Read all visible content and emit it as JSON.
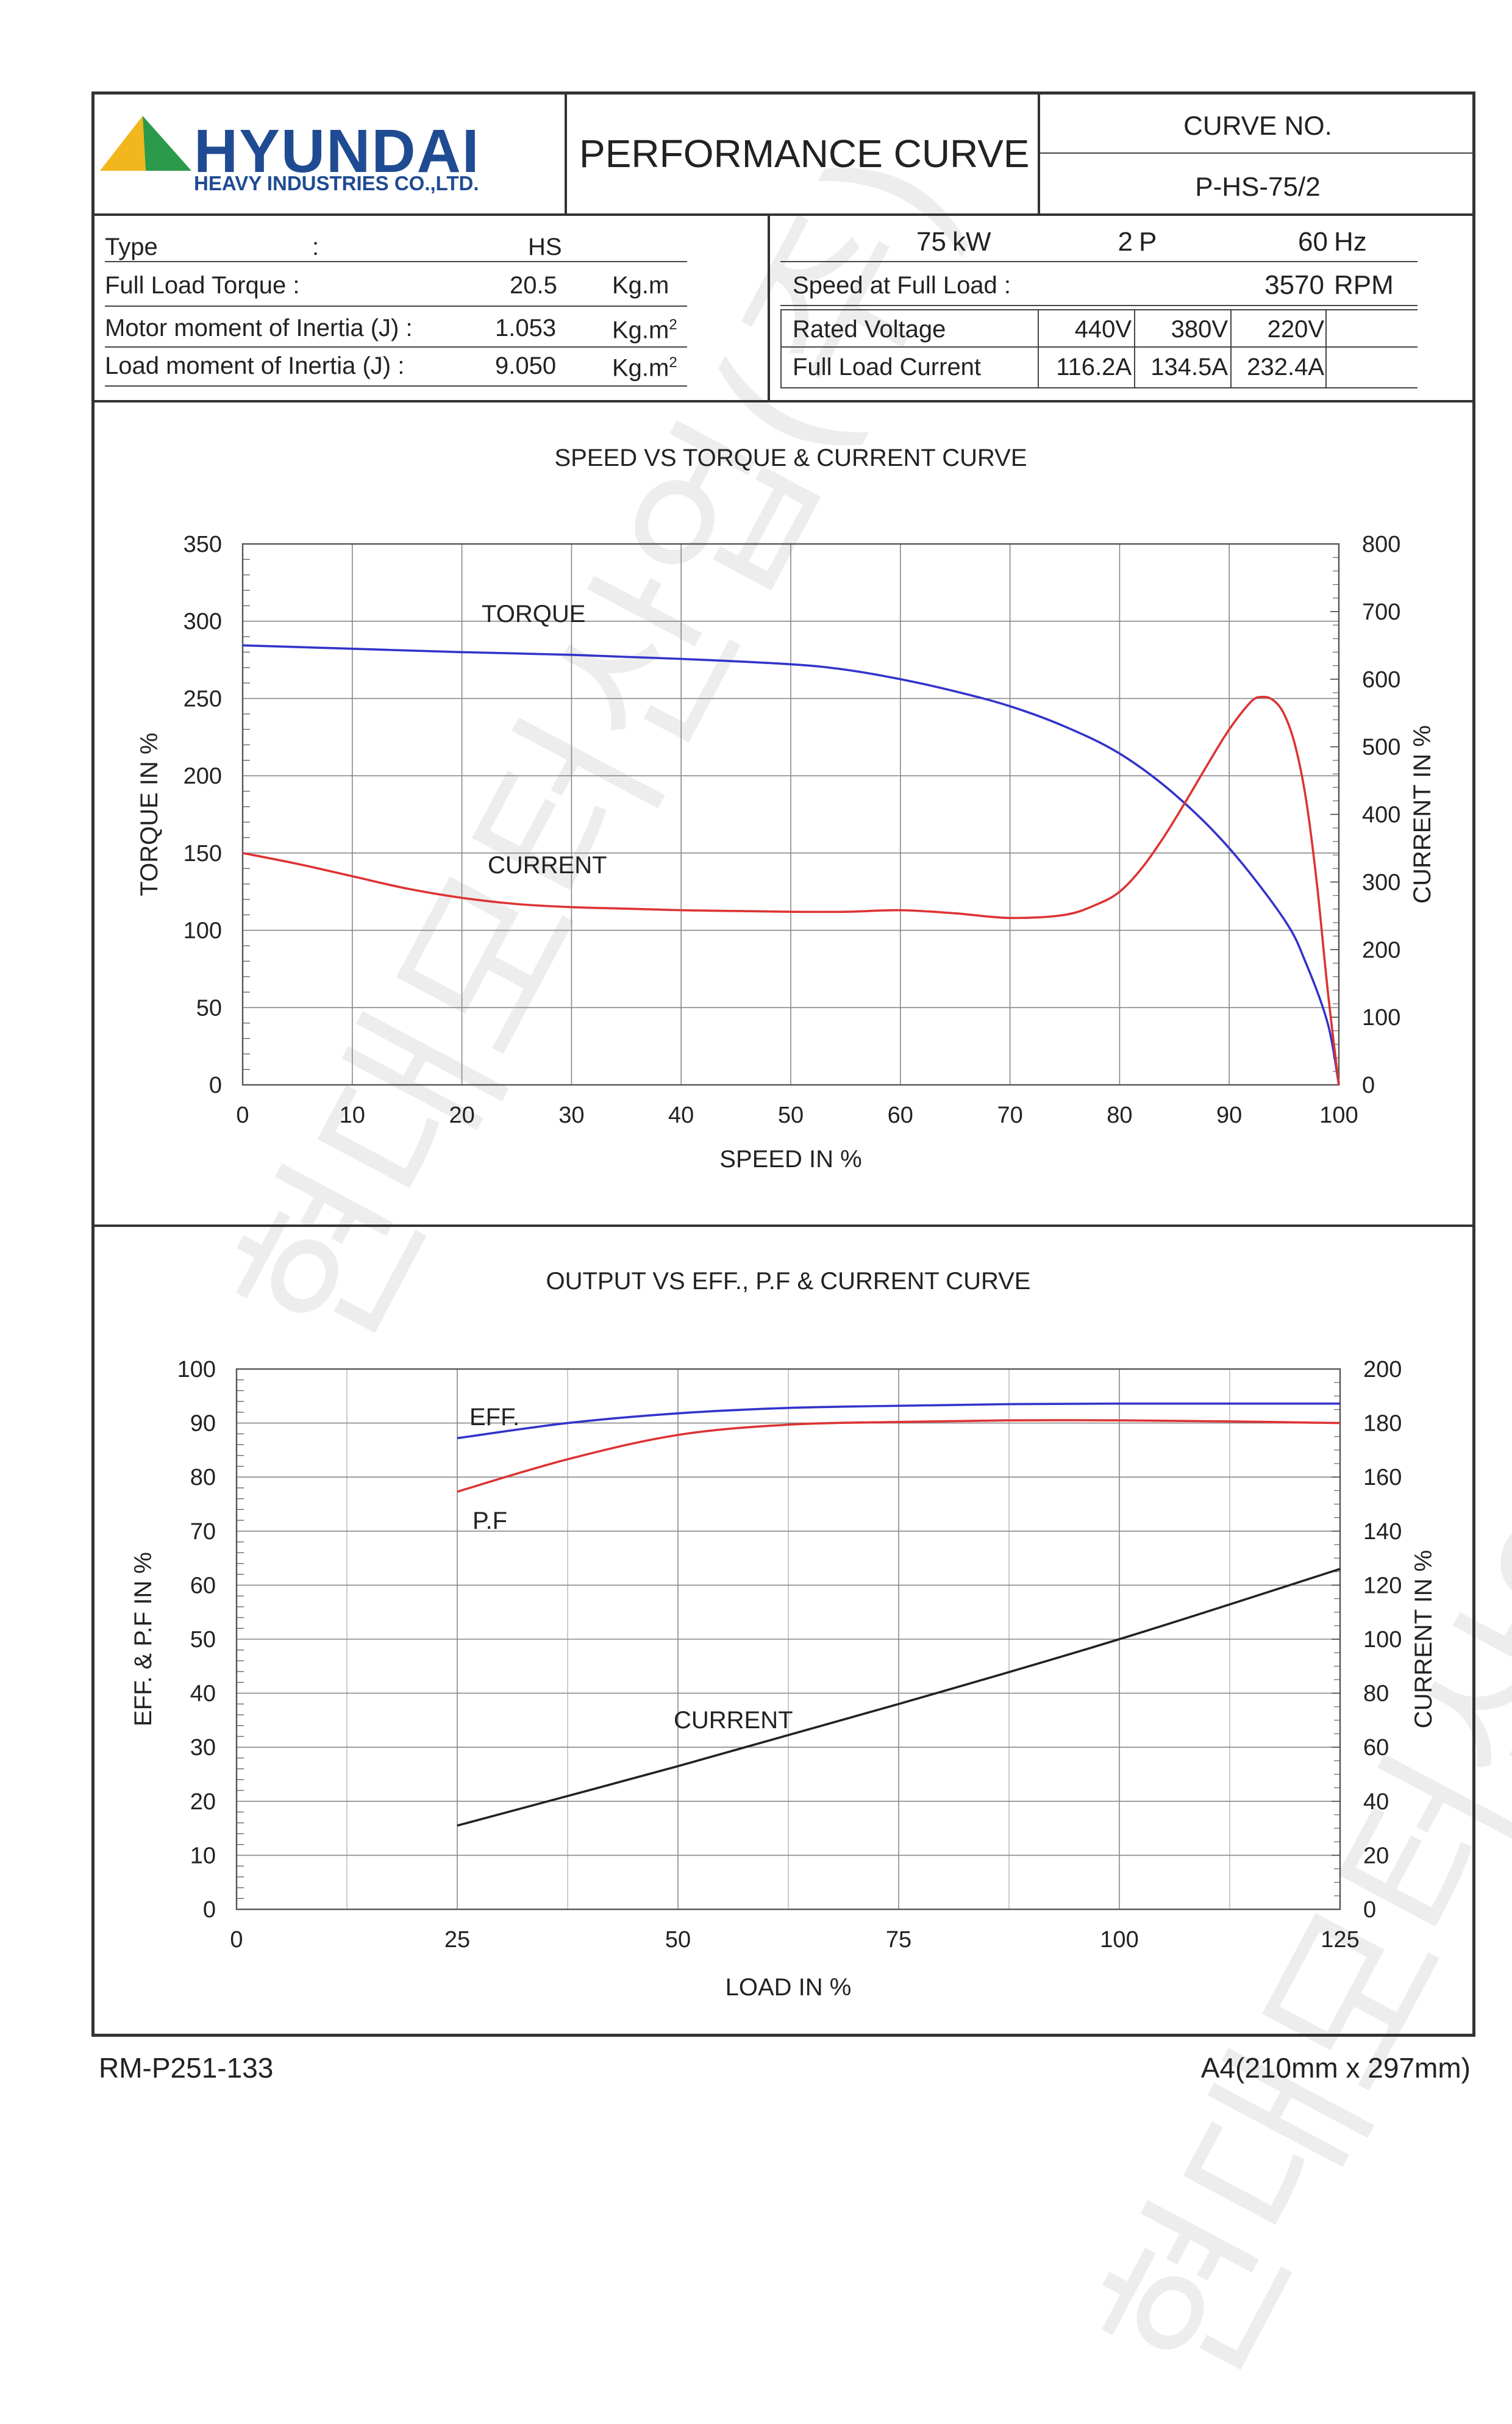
{
  "header": {
    "brand": "HYUNDAI",
    "brand_sub": "HEAVY INDUSTRIES CO.,LTD.",
    "title": "PERFORMANCE CURVE",
    "curve_no_label": "CURVE NO.",
    "curve_no_value": "P-HS-75/2"
  },
  "specs_left": {
    "type_label": "Type",
    "type_colon": ":",
    "type_value": "HS",
    "torque_label": "Full Load Torque :",
    "torque_value": "20.5",
    "torque_unit": "Kg.m",
    "motor_inertia_label": "Motor moment of Inertia (J) :",
    "motor_inertia_value": "1.053",
    "motor_inertia_unit": "Kg.m",
    "motor_inertia_exp": "2",
    "load_inertia_label": "Load moment of Inertia (J) :",
    "load_inertia_value": "9.050",
    "load_inertia_unit": "Kg.m",
    "load_inertia_exp": "2"
  },
  "specs_right": {
    "power_value": "75",
    "power_unit": "kW",
    "poles_value": "2",
    "poles_unit": "P",
    "freq_value": "60",
    "freq_unit": "Hz",
    "speed_label": "Speed at Full Load :",
    "speed_value": "3570",
    "speed_unit": "RPM",
    "voltage_label": "Rated Voltage",
    "voltages": [
      "440V",
      "380V",
      "220V"
    ],
    "current_label": "Full Load Current",
    "currents": [
      "116.2A",
      "134.5A",
      "232.4A"
    ]
  },
  "footer": {
    "doc_code": "RM-P251-133",
    "paper_size": "A4(210mm x 297mm)"
  },
  "watermark": {
    "text_1": "현대모터산업(주)",
    "text_2": "현대모터산업(주)"
  },
  "chart_data": [
    {
      "type": "line",
      "title": "SPEED VS TORQUE & CURRENT CURVE",
      "xlabel": "SPEED IN %",
      "ylabel": "TORQUE IN %",
      "y2label": "CURRENT IN %",
      "xlim": [
        0,
        100
      ],
      "ylim": [
        0,
        350
      ],
      "y2lim": [
        0,
        800
      ],
      "xticks": [
        0,
        10,
        20,
        30,
        40,
        50,
        60,
        70,
        80,
        90,
        100
      ],
      "yticks": [
        0,
        50,
        100,
        150,
        200,
        250,
        300,
        350
      ],
      "y2ticks": [
        0,
        100,
        200,
        300,
        400,
        500,
        600,
        700,
        800
      ],
      "grid": true,
      "series": [
        {
          "name": "CURRENT",
          "axis": "right",
          "color": "#3333cc",
          "x": [
            0,
            10,
            20,
            30,
            40,
            50,
            55,
            60,
            65,
            70,
            75,
            80,
            85,
            90,
            95,
            97,
            99,
            100
          ],
          "y": [
            650,
            645,
            640,
            636,
            630,
            622,
            614,
            600,
            582,
            560,
            530,
            490,
            430,
            350,
            245,
            180,
            90,
            0
          ]
        },
        {
          "name": "TORQUE",
          "axis": "left",
          "color": "#dd3333",
          "x": [
            0,
            5,
            10,
            15,
            20,
            25,
            30,
            35,
            40,
            45,
            50,
            55,
            60,
            65,
            70,
            75,
            78,
            80,
            82,
            84,
            86,
            88,
            90,
            92,
            93,
            94,
            95,
            96,
            97,
            98,
            99,
            100
          ],
          "y": [
            150,
            143,
            135,
            127,
            121,
            117,
            115,
            114,
            113,
            112.5,
            112,
            112,
            113,
            111,
            108,
            110,
            117,
            125,
            140,
            160,
            183,
            207,
            230,
            248,
            251,
            249,
            240,
            220,
            185,
            130,
            60,
            0
          ]
        }
      ]
    },
    {
      "type": "line",
      "title": "OUTPUT VS EFF., P.F & CURRENT CURVE",
      "xlabel": "LOAD IN %",
      "ylabel": "EFF. & P.F IN %",
      "y2label": "CURRENT IN %",
      "xlim": [
        0,
        125
      ],
      "ylim": [
        0,
        100
      ],
      "y2lim": [
        0,
        200
      ],
      "xticks": [
        0,
        25,
        50,
        75,
        100,
        125
      ],
      "yticks": [
        0,
        10,
        20,
        30,
        40,
        50,
        60,
        70,
        80,
        90,
        100
      ],
      "y2ticks": [
        0,
        20,
        40,
        60,
        80,
        100,
        120,
        140,
        160,
        180,
        200
      ],
      "grid": true,
      "series": [
        {
          "name": "EFF.",
          "axis": "left",
          "color": "#3333cc",
          "x": [
            25,
            37.5,
            50,
            62.5,
            75,
            87.5,
            100,
            112.5,
            125
          ],
          "y": [
            87.2,
            90.0,
            91.8,
            92.8,
            93.2,
            93.5,
            93.6,
            93.6,
            93.6
          ]
        },
        {
          "name": "P.F",
          "axis": "left",
          "color": "#dd3333",
          "x": [
            25,
            37.5,
            50,
            62.5,
            75,
            87.5,
            100,
            112.5,
            125
          ],
          "y": [
            77.3,
            83.3,
            87.8,
            89.7,
            90.2,
            90.5,
            90.5,
            90.3,
            90.0
          ]
        },
        {
          "name": "CURRENT",
          "axis": "right",
          "color": "#222222",
          "x": [
            25,
            50,
            75,
            100,
            125
          ],
          "y": [
            31,
            53,
            76,
            100,
            126
          ]
        }
      ]
    }
  ]
}
